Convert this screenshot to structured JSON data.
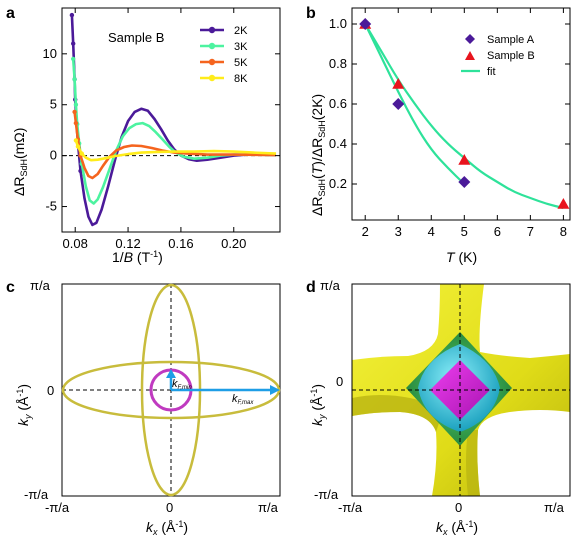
{
  "chart_data": [
    {
      "panel": "a",
      "type": "line",
      "annotation": "Sample B",
      "xlabel_main": "1/",
      "xlabel_var": "B",
      "xlabel_unit": " (T",
      "xlabel_sup": "-1",
      "xlabel_close": ")",
      "ylabel": "ΔR",
      "ylabel_sub": "SdH",
      "ylabel_unit": "(mΩ)",
      "xlim": [
        0.07,
        0.235
      ],
      "ylim": [
        -7.5,
        14.5
      ],
      "xticks": [
        0.08,
        0.12,
        0.16,
        0.2
      ],
      "xtick_labels": [
        "0.08",
        "0.12",
        "0.16",
        "0.20"
      ],
      "yticks": [
        -5,
        0,
        5,
        10
      ],
      "ytick_labels": [
        "-5",
        "0",
        "5",
        "10"
      ],
      "legend_position": "top-right",
      "series": [
        {
          "name": "2K",
          "color": "#4b1a99",
          "points": [
            [
              0.0775,
              13.8
            ],
            [
              0.0785,
              11
            ],
            [
              0.0795,
              7.5
            ],
            [
              0.08,
              5.5
            ],
            [
              0.081,
              3.2
            ],
            [
              0.082,
              1.3
            ],
            [
              0.084,
              -1.5
            ],
            [
              0.087,
              -4.2
            ],
            [
              0.09,
              -6
            ],
            [
              0.093,
              -6.8
            ],
            [
              0.096,
              -6.6
            ],
            [
              0.1,
              -5.3
            ],
            [
              0.105,
              -3
            ],
            [
              0.11,
              -0.5
            ],
            [
              0.115,
              1.8
            ],
            [
              0.12,
              3.4
            ],
            [
              0.125,
              4.3
            ],
            [
              0.13,
              4.6
            ],
            [
              0.135,
              4.4
            ],
            [
              0.14,
              3.6
            ],
            [
              0.145,
              2.6
            ],
            [
              0.15,
              1.5
            ],
            [
              0.155,
              0.6
            ],
            [
              0.16,
              0
            ],
            [
              0.166,
              -0.35
            ],
            [
              0.172,
              -0.5
            ],
            [
              0.18,
              -0.4
            ],
            [
              0.19,
              -0.2
            ],
            [
              0.2,
              0
            ],
            [
              0.21,
              0.1
            ],
            [
              0.22,
              0.1
            ],
            [
              0.232,
              0.05
            ]
          ]
        },
        {
          "name": "3K",
          "color": "#4cf3a0",
          "points": [
            [
              0.0785,
              9.5
            ],
            [
              0.0795,
              7.5
            ],
            [
              0.0805,
              5
            ],
            [
              0.0815,
              3.1
            ],
            [
              0.083,
              1.2
            ],
            [
              0.085,
              -0.8
            ],
            [
              0.088,
              -3
            ],
            [
              0.091,
              -4.4
            ],
            [
              0.094,
              -4.7
            ],
            [
              0.097,
              -4.3
            ],
            [
              0.101,
              -3.1
            ],
            [
              0.106,
              -1.3
            ],
            [
              0.111,
              0.5
            ],
            [
              0.116,
              1.9
            ],
            [
              0.121,
              2.7
            ],
            [
              0.126,
              3.1
            ],
            [
              0.131,
              3.2
            ],
            [
              0.136,
              2.9
            ],
            [
              0.141,
              2.3
            ],
            [
              0.146,
              1.6
            ],
            [
              0.151,
              0.9
            ],
            [
              0.156,
              0.3
            ],
            [
              0.162,
              -0.1
            ],
            [
              0.17,
              -0.3
            ],
            [
              0.18,
              -0.2
            ],
            [
              0.19,
              0
            ],
            [
              0.2,
              0.1
            ],
            [
              0.215,
              0.1
            ],
            [
              0.232,
              0.05
            ]
          ]
        },
        {
          "name": "5K",
          "color": "#f5641e",
          "points": [
            [
              0.0795,
              4.3
            ],
            [
              0.0805,
              3.2
            ],
            [
              0.082,
              1.6
            ],
            [
              0.084,
              0
            ],
            [
              0.087,
              -1.2
            ],
            [
              0.09,
              -2
            ],
            [
              0.093,
              -2.2
            ],
            [
              0.097,
              -1.8
            ],
            [
              0.101,
              -1
            ],
            [
              0.106,
              -0.1
            ],
            [
              0.111,
              0.5
            ],
            [
              0.117,
              0.85
            ],
            [
              0.123,
              1.0
            ],
            [
              0.13,
              0.95
            ],
            [
              0.138,
              0.75
            ],
            [
              0.146,
              0.5
            ],
            [
              0.155,
              0.3
            ],
            [
              0.165,
              0.2
            ],
            [
              0.18,
              0.1
            ],
            [
              0.2,
              0.1
            ],
            [
              0.232,
              0.05
            ]
          ]
        },
        {
          "name": "8K",
          "color": "#ffec1a",
          "points": [
            [
              0.0805,
              1.5
            ],
            [
              0.082,
              0.9
            ],
            [
              0.085,
              0.2
            ],
            [
              0.088,
              -0.2
            ],
            [
              0.092,
              -0.45
            ],
            [
              0.097,
              -0.4
            ],
            [
              0.103,
              -0.25
            ],
            [
              0.11,
              -0.05
            ],
            [
              0.12,
              0.15
            ],
            [
              0.13,
              0.3
            ],
            [
              0.14,
              0.35
            ],
            [
              0.155,
              0.4
            ],
            [
              0.17,
              0.4
            ],
            [
              0.185,
              0.45
            ],
            [
              0.2,
              0.4
            ],
            [
              0.215,
              0.3
            ],
            [
              0.232,
              0.2
            ]
          ]
        }
      ]
    },
    {
      "panel": "b",
      "type": "scatter",
      "xlabel": "T",
      "xlabel_unit": " (K)",
      "ylabel_text": "ΔR",
      "ylabel_sub": "SdH",
      "ylabel_mid_open": "(",
      "ylabel_mid_var": "T",
      "ylabel_mid_close": ")/ΔR",
      "ylabel_end": "(2K)",
      "xlim": [
        1.6,
        8.2
      ],
      "ylim": [
        0.02,
        1.08
      ],
      "xticks": [
        2,
        3,
        4,
        5,
        6,
        7,
        8
      ],
      "xtick_labels": [
        "2",
        "3",
        "4",
        "5",
        "6",
        "7",
        "8"
      ],
      "yticks": [
        0.2,
        0.4,
        0.6,
        0.8,
        1.0
      ],
      "ytick_labels": [
        "0.2",
        "0.4",
        "0.6",
        "0.8",
        "1.0"
      ],
      "legend_position": "top-right",
      "series": [
        {
          "name": "Sample A",
          "marker": "diamond",
          "color": "#4b1a99",
          "x": [
            2,
            3,
            5
          ],
          "y": [
            1.0,
            0.6,
            0.21
          ]
        },
        {
          "name": "Sample B",
          "marker": "triangle",
          "color": "#e8141e",
          "x": [
            2,
            3,
            5,
            8
          ],
          "y": [
            1.0,
            0.7,
            0.32,
            0.1
          ]
        },
        {
          "name": "fit",
          "marker": "line",
          "color": "#2ee29a",
          "curves": [
            {
              "x": [
                2,
                2.5,
                3,
                3.5,
                4,
                4.5,
                5
              ],
              "y": [
                1.0,
                0.83,
                0.66,
                0.5,
                0.37,
                0.28,
                0.2
              ]
            },
            {
              "x": [
                2,
                2.5,
                3,
                3.5,
                4,
                4.5,
                5,
                5.5,
                6,
                6.5,
                7,
                7.5,
                8
              ],
              "y": [
                1.0,
                0.86,
                0.72,
                0.6,
                0.49,
                0.4,
                0.33,
                0.26,
                0.21,
                0.16,
                0.13,
                0.1,
                0.08
              ]
            }
          ]
        }
      ]
    },
    {
      "panel": "c",
      "type": "diagram",
      "xlabel": "k",
      "xlabel_sub": "x",
      "xlabel_unit": " (Å",
      "xlabel_sup": "-1",
      "xlabel_close": ")",
      "ylabel": "k",
      "ylabel_sub": "y",
      "ylabel_unit": " (Å",
      "ylabel_sup": "-1",
      "ylabel_close": ")",
      "xtick_labels": [
        "-π/a",
        "0",
        "π/a"
      ],
      "ytick_labels": [
        "π/a",
        "0",
        "-π/a"
      ],
      "kmin_label": "k",
      "kmin_sub": "F,min",
      "kmax_label": "k",
      "kmax_sub": "F,max",
      "ellipse_color": "#c8bc3c",
      "circle_color": "#c03ac0",
      "arrow_color": "#1e9ee6",
      "ellipse_semi_major": 1.0,
      "ellipse_semi_minor": 0.27,
      "circle_radius": 0.18
    },
    {
      "panel": "d",
      "type": "diagram",
      "xlabel": "k",
      "xlabel_sub": "x",
      "xlabel_unit": " (Å",
      "xlabel_sup": "-1",
      "xlabel_close": ")",
      "ylabel": "k",
      "ylabel_sub": "y",
      "ylabel_unit": " (Å",
      "ylabel_sup": "-1",
      "ylabel_close": ")",
      "xtick_labels": [
        "-π/a",
        "0",
        "π/a"
      ],
      "ytick_labels": [
        "π/a",
        "0",
        "-π/a"
      ],
      "surface_colors": {
        "yellow": "#e9e61e",
        "green": "#2fa548",
        "cyan": "#2ec6dc",
        "magenta": "#d218d6"
      }
    }
  ]
}
